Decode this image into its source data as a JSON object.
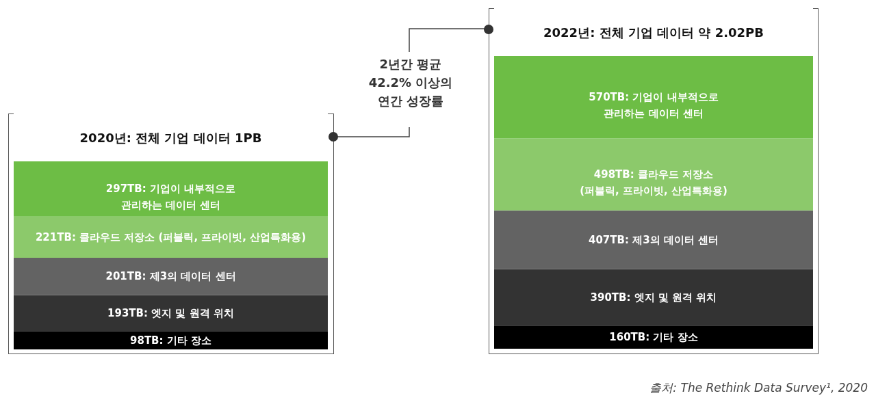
{
  "chart_data": [
    {
      "type": "bar",
      "title": "2020년: 전체 기업 데이터 1PB",
      "categories": [
        null
      ],
      "stacked": true,
      "tick_labels": false,
      "annotations": [
        "2년간 평균\n42.2% 이상의\n연간 성장률"
      ],
      "series": [
        {
          "color": "#000000",
          "values": [
            98
          ],
          "value_labels": [
            "98TB: 기타 장소"
          ]
        },
        {
          "color": "#333333",
          "values": [
            193
          ],
          "value_labels": [
            "193TB: 엣지 및 원격 위치"
          ]
        },
        {
          "color": "#636363",
          "values": [
            201
          ],
          "value_labels": [
            "201TB: 제3의 데이터 센터"
          ]
        },
        {
          "color": "#8cc96b",
          "values": [
            221
          ],
          "value_labels": [
            "221TB: 클라우드 저장소 (퍼블릭, 프라이빗, 산업특화용)"
          ]
        },
        {
          "color": "#6dbd45",
          "values": [
            297
          ],
          "value_labels": [
            "297TB: 기업이 내부적으로\n관리하는 데이터 센터"
          ]
        }
      ]
    },
    {
      "type": "bar",
      "title": "2022년: 전체 기업 데이터 약 2.02PB",
      "categories": [
        null
      ],
      "stacked": true,
      "tick_labels": false,
      "annotations": [
        "출처: The Rethink Data Survey¹, 2020"
      ],
      "series": [
        {
          "color": "#000000",
          "values": [
            160
          ],
          "value_labels": [
            "160TB: 기타 장소"
          ]
        },
        {
          "color": "#333333",
          "values": [
            390
          ],
          "value_labels": [
            "390TB: 엣지 및 원격 위치"
          ]
        },
        {
          "color": "#636363",
          "values": [
            407
          ],
          "value_labels": [
            "407TB: 제3의 데이터 센터"
          ]
        },
        {
          "color": "#8cc96b",
          "values": [
            498
          ],
          "value_labels": [
            "498TB: 클라우드 저장소\n(퍼블릭, 프라이빗, 산업특화용)"
          ]
        },
        {
          "color": "#6dbd45",
          "values": [
            570
          ],
          "value_labels": [
            "570TB: 기업이 내부적으로\n관리하는 데이터 센터"
          ]
        }
      ]
    }
  ]
}
